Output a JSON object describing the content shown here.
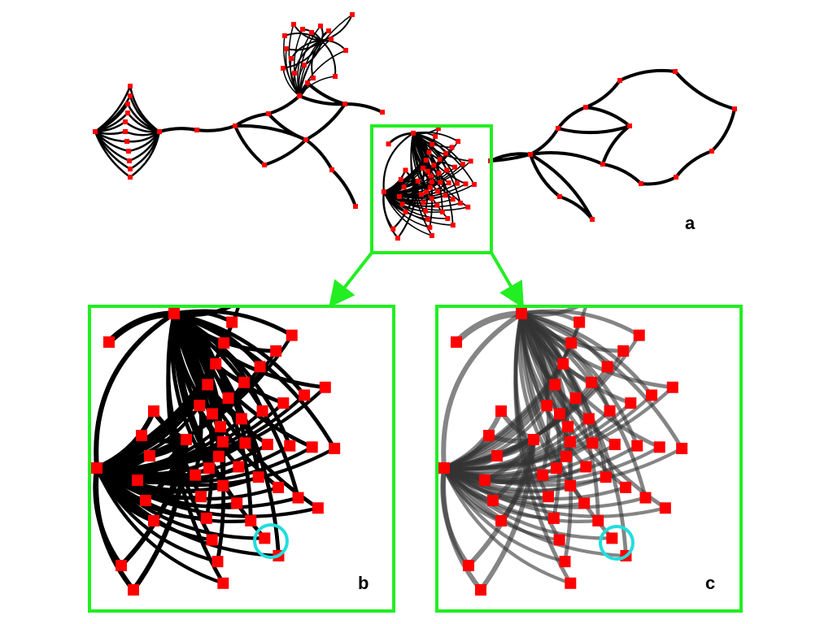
{
  "panels": [
    {
      "id": "a",
      "label": "a"
    },
    {
      "id": "b",
      "label": "b"
    },
    {
      "id": "c",
      "label": "c"
    }
  ],
  "colors": {
    "node": "#ff0000",
    "edge": "#000000",
    "edge_translucent": "#333333",
    "frame": "#22ee22",
    "highlight": "#22dddd",
    "background": "#ffffff"
  },
  "icons": [
    "node-square",
    "zoom-arrow",
    "highlight-circle"
  ]
}
